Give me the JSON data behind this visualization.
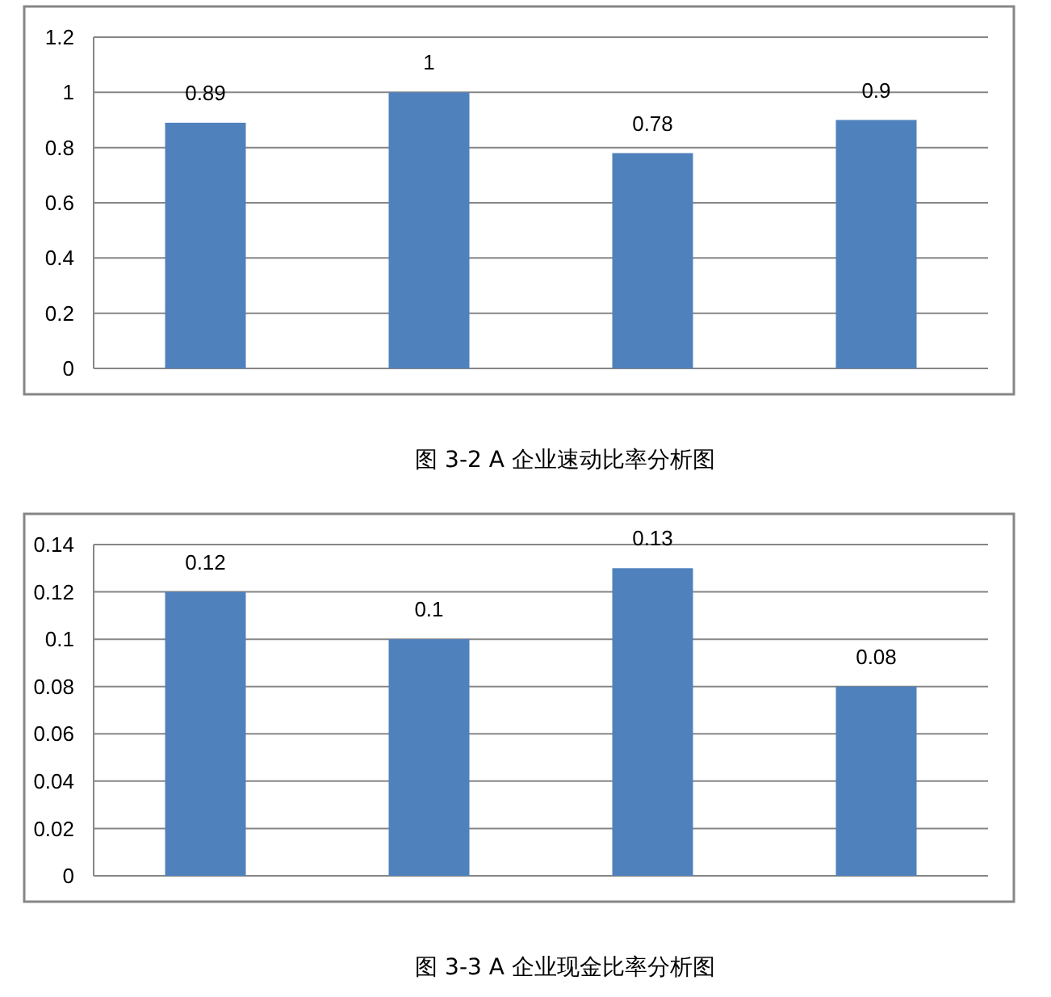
{
  "chart_data": [
    {
      "type": "bar",
      "title": "图 3-2 A 企业速动比率分析图",
      "categories": [
        null,
        null,
        null,
        null
      ],
      "values": [
        0.89,
        1,
        0.78,
        0.9
      ],
      "color": "#4f81bd",
      "ylim": [
        0,
        1.2
      ],
      "yticks": [
        0,
        0.2,
        0.4,
        0.6,
        0.8,
        1,
        1.2
      ],
      "grid": "y",
      "data_labels": true
    },
    {
      "type": "bar",
      "title": "图 3-3 A 企业现金比率分析图",
      "categories": [
        null,
        null,
        null,
        null
      ],
      "values": [
        0.12,
        0.1,
        0.13,
        0.08
      ],
      "color": "#4f81bd",
      "ylim": [
        0,
        0.14
      ],
      "yticks": [
        0,
        0.02,
        0.04,
        0.06,
        0.08,
        0.1,
        0.12,
        0.14
      ],
      "grid": "y",
      "data_labels": true
    }
  ]
}
